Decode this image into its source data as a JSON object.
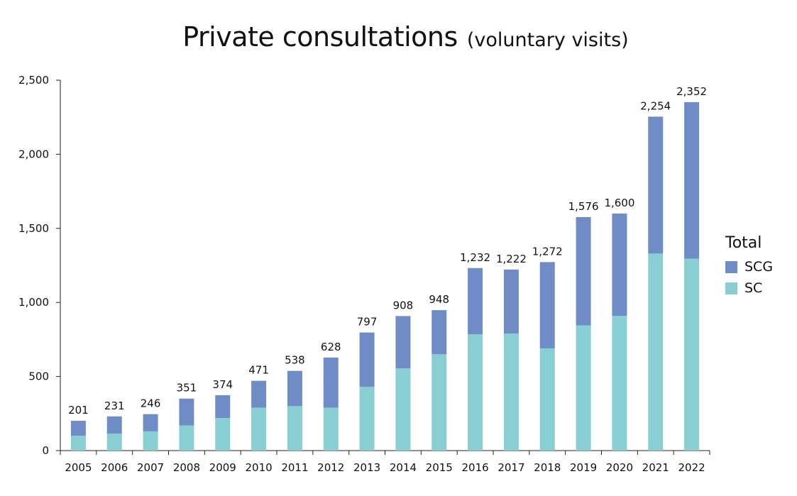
{
  "title": "Private consultations",
  "subtitle": "(voluntary visits)",
  "legend": {
    "title": "Total",
    "items": [
      {
        "label": "SCG",
        "color": "#6f8cc7"
      },
      {
        "label": "SC",
        "color": "#88ced3"
      }
    ]
  },
  "chart_data": {
    "type": "bar",
    "stacked": true,
    "title": "Private consultations (voluntary visits)",
    "categories": [
      "2005",
      "2006",
      "2007",
      "2008",
      "2009",
      "2010",
      "2011",
      "2012",
      "2013",
      "2014",
      "2015",
      "2016",
      "2017",
      "2018",
      "2019",
      "2020",
      "2021",
      "2022"
    ],
    "totals": [
      201,
      231,
      246,
      351,
      374,
      471,
      538,
      628,
      797,
      908,
      948,
      1232,
      1222,
      1272,
      1576,
      1600,
      2254,
      2352
    ],
    "total_labels": [
      "201",
      "231",
      "246",
      "351",
      "374",
      "471",
      "538",
      "628",
      "797",
      "908",
      "948",
      "1,232",
      "1,222",
      "1,272",
      "1,576",
      "1,600",
      "2,254",
      "2,352"
    ],
    "series": [
      {
        "name": "SC",
        "color": "#88ced3",
        "values": [
          100,
          115,
          130,
          170,
          220,
          290,
          300,
          290,
          430,
          555,
          650,
          785,
          790,
          690,
          845,
          910,
          1330,
          1295
        ]
      },
      {
        "name": "SCG",
        "color": "#6f8cc7",
        "values": [
          101,
          116,
          116,
          181,
          154,
          181,
          238,
          338,
          367,
          353,
          298,
          447,
          432,
          582,
          731,
          690,
          924,
          1057
        ]
      }
    ],
    "ylim": [
      0,
      2500
    ],
    "yticks": [
      0,
      500,
      1000,
      1500,
      2000,
      2500
    ],
    "ytick_labels": [
      "0",
      "500",
      "1,000",
      "1,500",
      "2,000",
      "2,500"
    ],
    "legend_position": "right",
    "grid": false
  }
}
